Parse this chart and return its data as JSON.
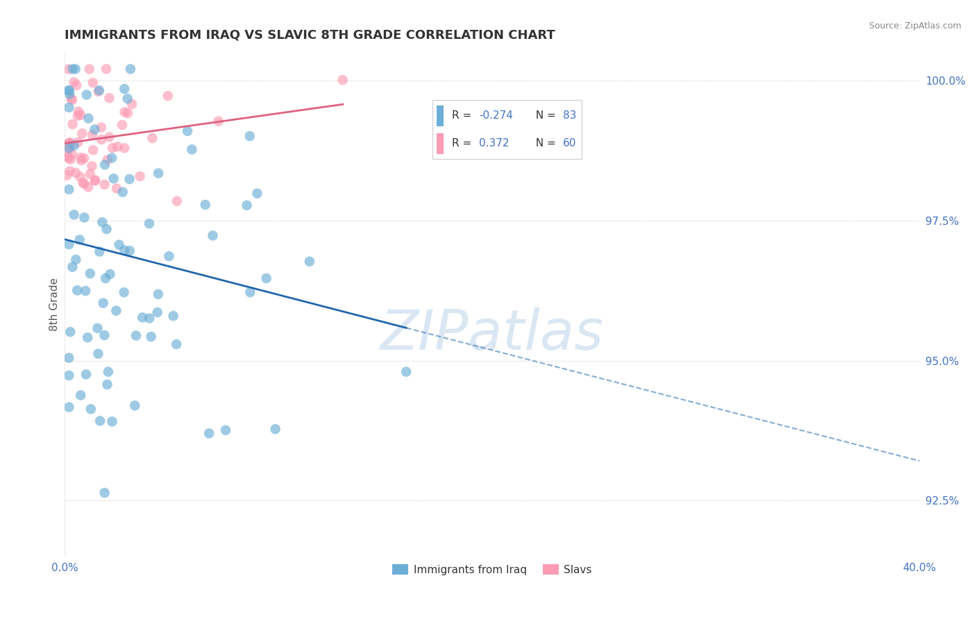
{
  "title": "IMMIGRANTS FROM IRAQ VS SLAVIC 8TH GRADE CORRELATION CHART",
  "source_text": "Source: ZipAtlas.com",
  "ylabel": "8th Grade",
  "xlim": [
    0.0,
    0.4
  ],
  "ylim": [
    0.915,
    1.005
  ],
  "yticks": [
    0.925,
    0.95,
    0.975,
    1.0
  ],
  "ytick_labels": [
    "92.5%",
    "95.0%",
    "97.5%",
    "100.0%"
  ],
  "xticks": [
    0.0,
    0.4
  ],
  "xtick_labels": [
    "0.0%",
    "40.0%"
  ],
  "blue_color": "#6baed6",
  "pink_color": "#fc9cb4",
  "blue_line_color": "#2166ac",
  "pink_line_color": "#e06080",
  "blue_R": -0.274,
  "blue_N": 83,
  "pink_R": 0.372,
  "pink_N": 60,
  "legend_label_blue": "Immigrants from Iraq",
  "legend_label_pink": "Slavs",
  "watermark": "ZIPatlas",
  "background_color": "#ffffff",
  "grid_color": "#cccccc",
  "title_color": "#333333",
  "tick_color": "#4472c4",
  "source_color": "#888888",
  "ylabel_color": "#555555"
}
